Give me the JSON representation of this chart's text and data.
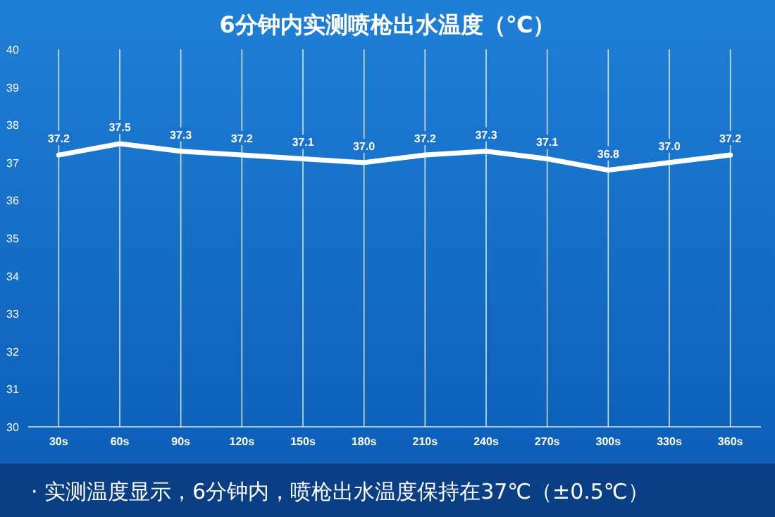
{
  "chart_data": {
    "type": "line",
    "title": "6分钟内实测喷枪出水温度（℃）",
    "annotations": [
      "· 实测温度显示，6分钟内，喷枪出水温度保持在37℃（±0.5℃）"
    ],
    "categories": [
      "30s",
      "60s",
      "90s",
      "120s",
      "150s",
      "180s",
      "210s",
      "240s",
      "270s",
      "300s",
      "330s",
      "360s"
    ],
    "series": [
      {
        "color": "#ffffff",
        "values": [
          37.2,
          37.5,
          37.3,
          37.2,
          37.1,
          37.0,
          37.2,
          37.3,
          37.1,
          36.8,
          37.0,
          37.2
        ],
        "value_labels": [
          "37.2",
          "37.5",
          "37.3",
          "37.2",
          "37.1",
          "37.0",
          "37.2",
          "37.3",
          "37.1",
          "36.8",
          "37.0",
          "37.2"
        ]
      }
    ],
    "ylim": [
      30,
      40
    ],
    "yticks": [
      30,
      31,
      32,
      33,
      34,
      35,
      36,
      37,
      38,
      39,
      40
    ],
    "grid": "x",
    "marker": "none",
    "line_style": "solid"
  }
}
